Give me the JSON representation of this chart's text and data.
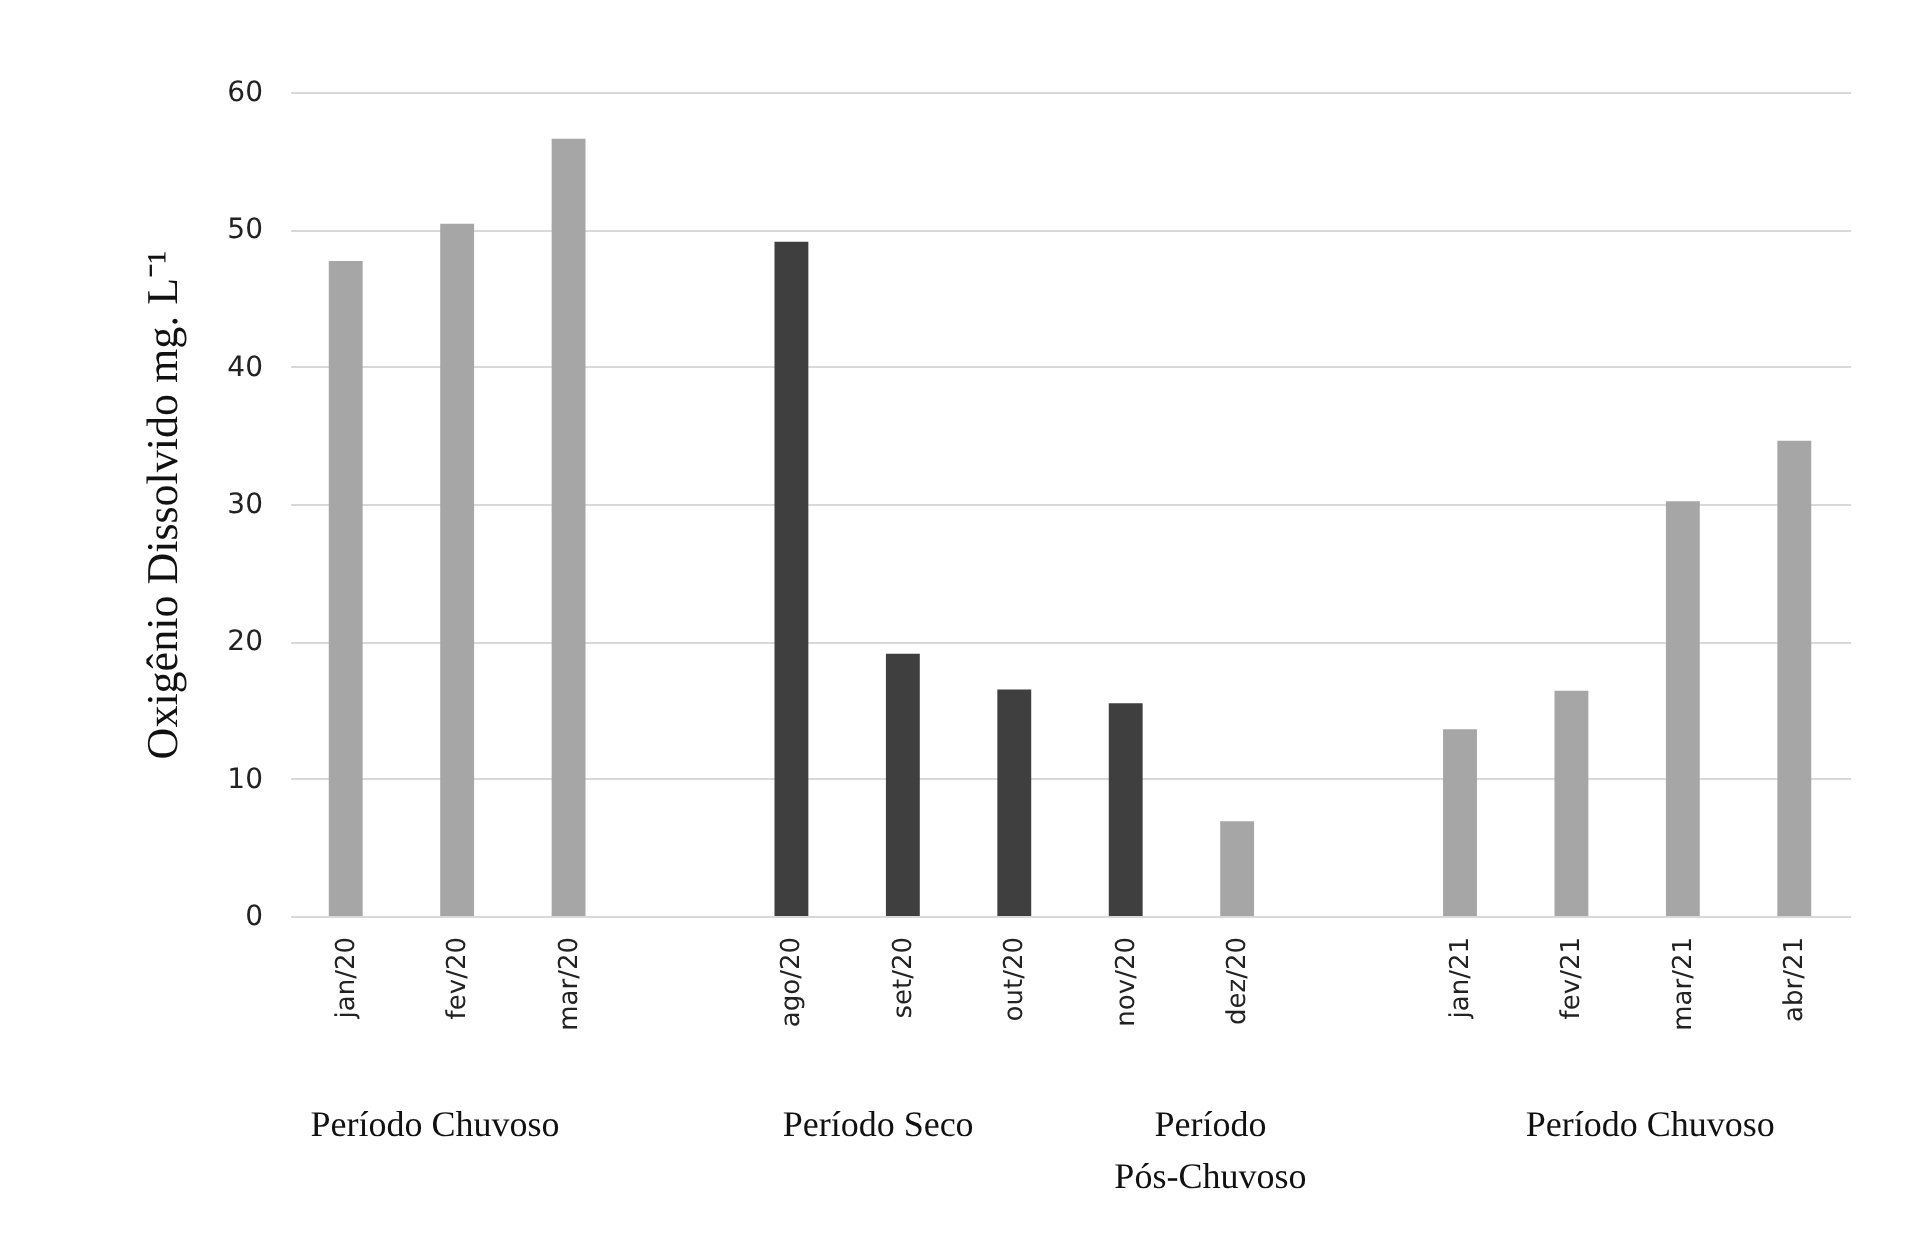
{
  "chart_data": {
    "type": "bar",
    "ylabel": "Oxigênio Dissolvido mg. L⁻¹",
    "categories": [
      "jan/20",
      "fev/20",
      "mar/20",
      null,
      "ago/20",
      "set/20",
      "out/20",
      "nov/20",
      "dez/20",
      null,
      "jan/21",
      "fev/21",
      "mar/21",
      "abr/21"
    ],
    "values": [
      47.7,
      50.4,
      56.6,
      null,
      49.1,
      19.1,
      16.5,
      15.5,
      6.9,
      null,
      13.6,
      16.4,
      30.2,
      34.6
    ],
    "colors": [
      "#a6a6a6",
      "#a6a6a6",
      "#a6a6a6",
      "#a6a6a6",
      "#3f3f3f",
      "#3f3f3f",
      "#3f3f3f",
      "#3f3f3f",
      "#a6a6a6",
      "#a6a6a6",
      "#a6a6a6",
      "#a6a6a6",
      "#a6a6a6",
      "#a6a6a6"
    ],
    "ylim": [
      0,
      60
    ],
    "yticks": [
      0,
      10,
      20,
      30,
      40,
      50,
      60
    ],
    "grid": "y",
    "legend": false,
    "annotations": [
      "Período Chuvoso",
      "Período Seco",
      "Período Pós-Chuvoso",
      "Período Chuvoso"
    ]
  }
}
